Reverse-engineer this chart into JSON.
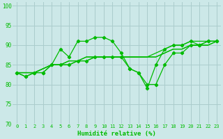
{
  "xlabel": "Humidité relative (%)",
  "xlim": [
    -0.5,
    23.5
  ],
  "ylim": [
    70,
    101
  ],
  "yticks": [
    70,
    75,
    80,
    85,
    90,
    95,
    100
  ],
  "xticks": [
    0,
    1,
    2,
    3,
    4,
    5,
    6,
    7,
    8,
    9,
    10,
    11,
    12,
    13,
    14,
    15,
    16,
    17,
    18,
    19,
    20,
    21,
    22,
    23
  ],
  "background_color": "#cce8e8",
  "grid_color": "#aacccc",
  "line_color": "#00bb00",
  "lines": [
    {
      "y": [
        83,
        82,
        83,
        83,
        85,
        89,
        87,
        91,
        91,
        92,
        92,
        91,
        88,
        84,
        83,
        79,
        85,
        89,
        90,
        90,
        91,
        90,
        91,
        91
      ],
      "marker": true
    },
    {
      "y": [
        83,
        83,
        83,
        84,
        85,
        85,
        86,
        86,
        87,
        87,
        87,
        87,
        87,
        87,
        87,
        87,
        88,
        89,
        90,
        90,
        91,
        91,
        91,
        91
      ],
      "marker": false
    },
    {
      "y": [
        83,
        83,
        83,
        84,
        85,
        85,
        86,
        86,
        87,
        87,
        87,
        87,
        87,
        87,
        87,
        87,
        87,
        88,
        89,
        89,
        90,
        90,
        90,
        91
      ],
      "marker": false
    },
    {
      "y": [
        83,
        83,
        83,
        84,
        85,
        85,
        85,
        86,
        86,
        87,
        87,
        87,
        87,
        87,
        87,
        87,
        87,
        88,
        89,
        89,
        90,
        90,
        90,
        91
      ],
      "marker": false
    },
    {
      "y": [
        83,
        82,
        83,
        83,
        85,
        85,
        85,
        86,
        86,
        87,
        87,
        87,
        87,
        84,
        83,
        80,
        80,
        85,
        88,
        88,
        90,
        90,
        91,
        91
      ],
      "marker": true
    }
  ]
}
